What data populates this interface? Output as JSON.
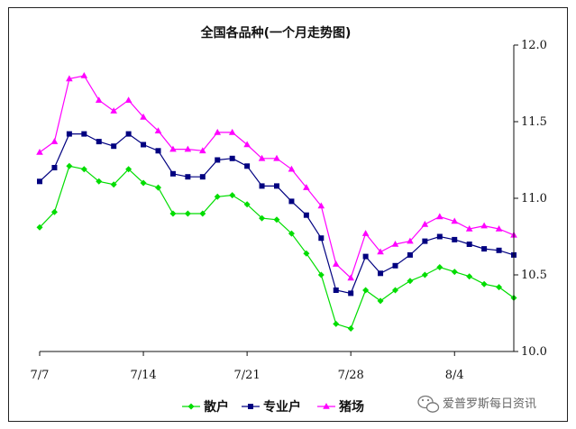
{
  "chart_data": {
    "type": "line",
    "title": "全国各品种(一个月走势图)",
    "x_tick_labels": [
      "7/7",
      "7/14",
      "7/21",
      "7/28",
      "8/4"
    ],
    "y_tick_labels": [
      "10.0",
      "10.5",
      "11.0",
      "11.5",
      "12.0"
    ],
    "ylim": [
      10.0,
      12.0
    ],
    "y_axis_side": "right",
    "grid": false,
    "legend_position": "bottom",
    "series": [
      {
        "name": "散户",
        "color": "#00dd00",
        "marker": "diamond",
        "values": [
          10.81,
          10.91,
          11.21,
          11.19,
          11.11,
          11.09,
          11.19,
          11.1,
          11.07,
          10.9,
          10.9,
          10.9,
          11.01,
          11.02,
          10.96,
          10.87,
          10.86,
          10.77,
          10.64,
          10.5,
          10.18,
          10.15,
          10.4,
          10.33,
          10.4,
          10.46,
          10.5,
          10.55,
          10.52,
          10.49,
          10.44,
          10.42,
          10.35
        ]
      },
      {
        "name": "专业户",
        "color": "#000080",
        "marker": "square",
        "values": [
          11.11,
          11.2,
          11.42,
          11.42,
          11.37,
          11.34,
          11.42,
          11.35,
          11.31,
          11.16,
          11.14,
          11.14,
          11.25,
          11.26,
          11.21,
          11.08,
          11.08,
          10.98,
          10.89,
          10.74,
          10.4,
          10.38,
          10.62,
          10.51,
          10.56,
          10.63,
          10.72,
          10.75,
          10.73,
          10.7,
          10.67,
          10.66,
          10.63
        ]
      },
      {
        "name": "猪场",
        "color": "#ff00ff",
        "marker": "triangle",
        "values": [
          11.3,
          11.37,
          11.78,
          11.8,
          11.64,
          11.57,
          11.64,
          11.53,
          11.44,
          11.32,
          11.32,
          11.31,
          11.43,
          11.43,
          11.35,
          11.26,
          11.26,
          11.19,
          11.07,
          10.95,
          10.57,
          10.48,
          10.77,
          10.65,
          10.7,
          10.72,
          10.83,
          10.88,
          10.85,
          10.8,
          10.82,
          10.8,
          10.76
        ]
      }
    ]
  },
  "watermark": {
    "text": "爱普罗斯每日资讯",
    "icon": "wechat-icon"
  }
}
